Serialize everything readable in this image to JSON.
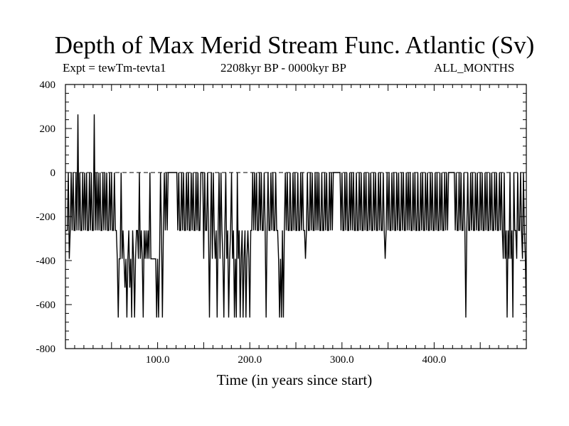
{
  "header": {
    "title": "Depth of Max Merid Stream Func. Atlantic (Sv)",
    "experiment": "Expt = tewTm-tevta1",
    "period": "2208kyr BP - 0000kyr BP",
    "months": "ALL_MONTHS"
  },
  "chart_data": {
    "type": "line",
    "title": "Depth of Max Merid Stream Func. Atlantic (Sv)",
    "xlabel": "Time (in years since start)",
    "ylabel": "",
    "xlim": [
      0,
      500
    ],
    "ylim": [
      -800,
      400
    ],
    "x_ticks": [
      {
        "value": 100,
        "label": "100.0"
      },
      {
        "value": 200,
        "label": "200.0"
      },
      {
        "value": 300,
        "label": "300.0"
      },
      {
        "value": 400,
        "label": "400.0"
      }
    ],
    "y_ticks": [
      {
        "value": 400,
        "label": "400"
      },
      {
        "value": 200,
        "label": "200"
      },
      {
        "value": 0,
        "label": "0"
      },
      {
        "value": -200,
        "label": "-200"
      },
      {
        "value": -400,
        "label": "-400"
      },
      {
        "value": -600,
        "label": "-600"
      },
      {
        "value": -800,
        "label": "-800"
      }
    ],
    "grid": false,
    "series": [
      {
        "values": [
          -263,
          -263,
          -263,
          0,
          -392,
          -263,
          0,
          -263,
          0,
          -263,
          -263,
          0,
          -263,
          264,
          -263,
          0,
          -263,
          -263,
          0,
          -263,
          0,
          -263,
          0,
          -263,
          -263,
          0,
          -263,
          0,
          -263,
          -263,
          264,
          -263,
          0,
          -263,
          0,
          -263,
          0,
          -263,
          -263,
          0,
          -263,
          0,
          -263,
          0,
          -263,
          -263,
          0,
          -263,
          0,
          -263,
          -263,
          0,
          -263,
          -263,
          -392,
          -659,
          -392,
          -392,
          0,
          -392,
          -263,
          -392,
          -523,
          -392,
          -659,
          -392,
          -263,
          -523,
          -392,
          -659,
          -263,
          -392,
          -659,
          -392,
          -263,
          -263,
          -392,
          0,
          -392,
          -263,
          -392,
          -659,
          -263,
          -392,
          -263,
          -392,
          -263,
          -392,
          0,
          -392,
          -392,
          -392,
          -392,
          -392,
          -392,
          -659,
          -392,
          -659,
          -392,
          0,
          -263,
          -659,
          -263,
          0,
          -263,
          0,
          -263,
          0,
          0,
          0,
          0,
          0,
          0,
          0,
          0,
          0,
          0,
          -263,
          0,
          -263,
          -263,
          0,
          -263,
          0,
          -263,
          -263,
          0,
          -263,
          0,
          -263,
          -263,
          0,
          -263,
          0,
          -263,
          -263,
          0,
          -263,
          0,
          -263,
          -263,
          0,
          0,
          0,
          -392,
          0,
          -263,
          -263,
          0,
          -263,
          -659,
          -263,
          0,
          -392,
          0,
          -263,
          -392,
          -263,
          -659,
          -263,
          0,
          -392,
          0,
          -263,
          -392,
          -659,
          -263,
          0,
          -392,
          -263,
          -659,
          -392,
          -263,
          0,
          -392,
          -263,
          -659,
          -392,
          -659,
          0,
          -392,
          -263,
          -659,
          -392,
          -263,
          -659,
          -392,
          -263,
          -659,
          -392,
          -263,
          -392,
          -659,
          -263,
          -263,
          0,
          -263,
          0,
          -263,
          0,
          -263,
          -263,
          0,
          -263,
          0,
          -263,
          -263,
          0,
          -263,
          -659,
          -263,
          0,
          -263,
          -263,
          0,
          -263,
          0,
          -263,
          -263,
          0,
          -263,
          -263,
          -392,
          -659,
          -392,
          -659,
          -263,
          -659,
          -263,
          0,
          -263,
          0,
          -263,
          -263,
          0,
          -263,
          -263,
          0,
          -263,
          0,
          -263,
          -263,
          0,
          -263,
          -263,
          0,
          -263,
          0,
          -263,
          -263,
          -392,
          -263,
          0,
          -263,
          -263,
          0,
          -263,
          0,
          -263,
          -263,
          0,
          -263,
          0,
          -263,
          0,
          -263,
          -263,
          0,
          -263,
          -263,
          0,
          -263,
          0,
          -263,
          -263,
          0,
          -263,
          0,
          -263,
          0,
          0,
          0,
          0,
          0,
          0,
          0,
          0,
          -263,
          0,
          -263,
          -263,
          0,
          -263,
          0,
          -263,
          -263,
          0,
          -263,
          0,
          -263,
          0,
          -263,
          -263,
          0,
          -263,
          -263,
          0,
          -263,
          0,
          -263,
          -263,
          0,
          -263,
          0,
          -263,
          -263,
          0,
          -263,
          0,
          -263,
          -263,
          0,
          -263,
          0,
          -263,
          -263,
          0,
          -263,
          0,
          -263,
          -263,
          0,
          -263,
          -392,
          -263,
          0,
          -263,
          0,
          -263,
          -263,
          0,
          -263,
          0,
          -263,
          -263,
          0,
          -263,
          0,
          -263,
          -263,
          0,
          -263,
          0,
          -263,
          -263,
          0,
          -263,
          0,
          -263,
          0,
          -263,
          -263,
          0,
          -263,
          0,
          -263,
          -263,
          0,
          -263,
          -263,
          0,
          -263,
          0,
          -263,
          -263,
          0,
          -263,
          0,
          -263,
          -263,
          0,
          -263,
          0,
          -263,
          -263,
          0,
          -263,
          0,
          -263,
          -263,
          0,
          -263,
          0,
          -263,
          -263,
          0,
          -263,
          0,
          -263,
          0,
          0,
          0,
          0,
          0,
          0,
          0,
          -263,
          0,
          -263,
          -263,
          0,
          -263,
          0,
          -263,
          -263,
          0,
          -263,
          -659,
          -263,
          0,
          -263,
          -263,
          0,
          -263,
          0,
          -263,
          -263,
          0,
          -263,
          0,
          -263,
          -263,
          0,
          -263,
          0,
          -263,
          -263,
          0,
          -263,
          0,
          -263,
          -263,
          0,
          -263,
          0,
          -263,
          -263,
          0,
          -263,
          0,
          -263,
          -263,
          0,
          -263,
          0,
          -263,
          -392,
          0,
          -392,
          -263,
          -659,
          -263,
          -392,
          0,
          -392,
          -263,
          -659,
          0,
          -263,
          -263,
          -392,
          0,
          -263,
          -263,
          0,
          -263,
          -392,
          0,
          -263,
          -392,
          -659
        ]
      }
    ]
  }
}
